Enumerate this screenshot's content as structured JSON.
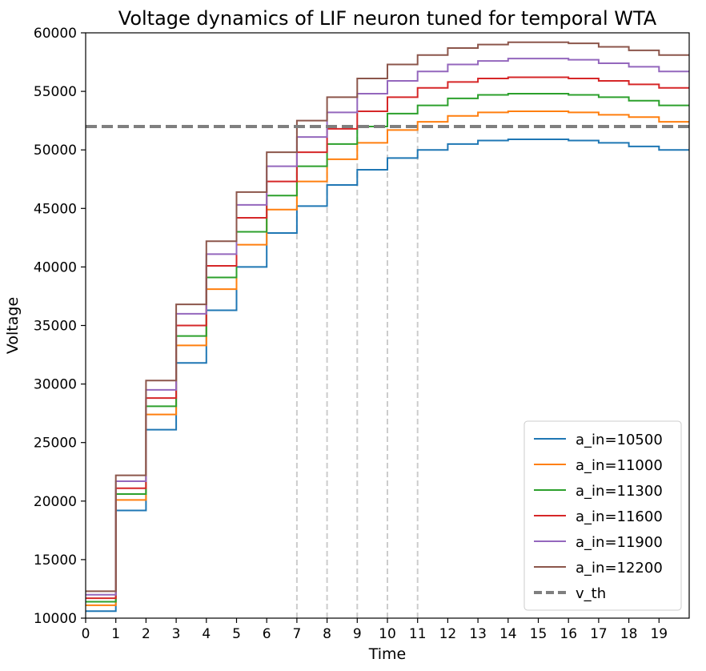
{
  "chart_data": {
    "type": "line",
    "step": "post",
    "title": "Voltage dynamics of LIF neuron tuned for temporal WTA",
    "xlabel": "Time",
    "ylabel": "Voltage",
    "xlim": [
      0,
      20
    ],
    "ylim": [
      10000,
      60000
    ],
    "xticks": [
      0,
      1,
      2,
      3,
      4,
      5,
      6,
      7,
      8,
      9,
      10,
      11,
      12,
      13,
      14,
      15,
      16,
      17,
      18,
      19
    ],
    "yticks": [
      10000,
      15000,
      20000,
      25000,
      30000,
      35000,
      40000,
      45000,
      50000,
      55000,
      60000
    ],
    "x": [
      0,
      1,
      2,
      3,
      4,
      5,
      6,
      7,
      8,
      9,
      10,
      11,
      12,
      13,
      14,
      15,
      16,
      17,
      18,
      19,
      20
    ],
    "series": [
      {
        "name": "a_in=10500",
        "color": "#1f77b4",
        "values": [
          10600,
          19200,
          26100,
          31800,
          36300,
          40000,
          42900,
          45200,
          47000,
          48300,
          49300,
          50000,
          50500,
          50800,
          50900,
          50900,
          50800,
          50600,
          50300,
          50000,
          50000
        ]
      },
      {
        "name": "a_in=11000",
        "color": "#ff7f0e",
        "values": [
          11100,
          20100,
          27400,
          33300,
          38100,
          41900,
          44900,
          47300,
          49200,
          50600,
          51700,
          52400,
          52900,
          53200,
          53300,
          53300,
          53200,
          53000,
          52800,
          52400,
          52400
        ]
      },
      {
        "name": "a_in=11300",
        "color": "#2ca02c",
        "values": [
          11400,
          20600,
          28100,
          34100,
          39100,
          43000,
          46100,
          48600,
          50500,
          52000,
          53100,
          53800,
          54400,
          54700,
          54800,
          54800,
          54700,
          54500,
          54200,
          53800,
          53800
        ]
      },
      {
        "name": "a_in=11600",
        "color": "#d62728",
        "values": [
          11700,
          21100,
          28800,
          35000,
          40100,
          44200,
          47300,
          49800,
          51800,
          53300,
          54500,
          55300,
          55800,
          56100,
          56200,
          56200,
          56100,
          55900,
          55600,
          55300,
          55300
        ]
      },
      {
        "name": "a_in=11900",
        "color": "#9467bd",
        "values": [
          12000,
          21700,
          29500,
          36000,
          41100,
          45300,
          48600,
          51100,
          53200,
          54800,
          55900,
          56700,
          57300,
          57600,
          57800,
          57800,
          57700,
          57400,
          57100,
          56700,
          56700
        ]
      },
      {
        "name": "a_in=12200",
        "color": "#8c564b",
        "values": [
          12300,
          22200,
          30300,
          36800,
          42200,
          46400,
          49800,
          52500,
          54500,
          56100,
          57300,
          58100,
          58700,
          59000,
          59200,
          59200,
          59100,
          58800,
          58500,
          58100,
          58100
        ]
      }
    ],
    "threshold": {
      "name": "v_th",
      "value": 52000,
      "color": "#7f7f7f",
      "style": "dashed"
    },
    "vlines": {
      "x": [
        7,
        8,
        9,
        10,
        11
      ],
      "ymax": 52000,
      "color": "#cccccc",
      "style": "dashed"
    },
    "legend_position": "lower-right",
    "grid": false
  }
}
